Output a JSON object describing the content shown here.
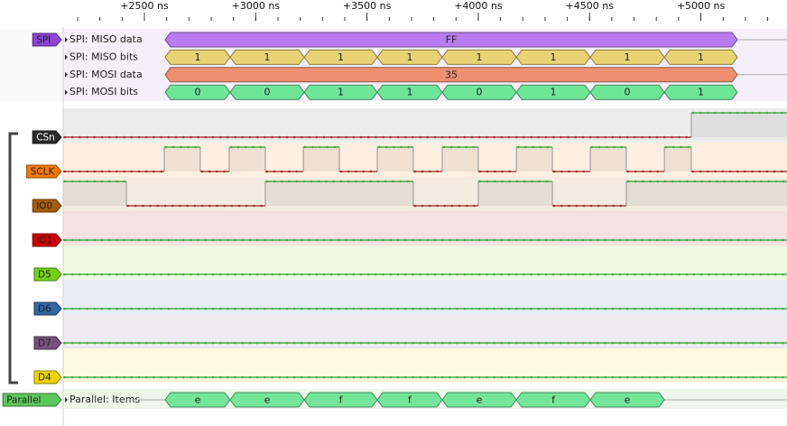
{
  "time_axis": {
    "lim": [
      2135,
      5387
    ],
    "ticks": [
      {
        "value": 2500,
        "label": "+2500 ns"
      },
      {
        "value": 3000,
        "label": "+3000 ns"
      },
      {
        "value": 3500,
        "label": "+3500 ns"
      },
      {
        "value": 4000,
        "label": "+4000 ns"
      },
      {
        "value": 4500,
        "label": "+4500 ns"
      },
      {
        "value": 5000,
        "label": "+5000 ns"
      }
    ]
  },
  "decoders": [
    {
      "name": "SPI",
      "color": "#8e44d6",
      "rows": [
        {
          "label": "SPI: MISO data",
          "color": "#b97cf0",
          "bounds": [
            2593,
            5164
          ],
          "texts": [
            "FF"
          ]
        },
        {
          "label": "SPI: MISO bits",
          "color": "#e8d274",
          "bounds": [
            2593,
            2885,
            3218,
            3546,
            3838,
            4171,
            4503,
            4836,
            5164
          ],
          "texts": [
            "1",
            "1",
            "1",
            "1",
            "1",
            "1",
            "1",
            "1"
          ]
        },
        {
          "label": "SPI: MOSI data",
          "color": "#ee8f6f",
          "bounds": [
            2593,
            5164
          ],
          "texts": [
            "35"
          ]
        },
        {
          "label": "SPI: MOSI bits",
          "color": "#6fe598",
          "bounds": [
            2593,
            2885,
            3218,
            3546,
            3838,
            4171,
            4503,
            4836,
            5164
          ],
          "texts": [
            "0",
            "0",
            "1",
            "1",
            "0",
            "1",
            "0",
            "1"
          ]
        }
      ]
    },
    {
      "name": "Parallel",
      "color": "#5cc85c",
      "rows": [
        {
          "label": "Parallel: Items",
          "color": "#74e59a",
          "bounds": [
            2593,
            2885,
            3218,
            3546,
            3838,
            4171,
            4503,
            4836
          ],
          "texts": [
            "e",
            "e",
            "f",
            "f",
            "e",
            "f",
            "e"
          ]
        }
      ]
    }
  ],
  "channels": [
    {
      "name": "CSn",
      "color": "#2b2b2b",
      "initial": 0,
      "edges": [
        4957
      ]
    },
    {
      "name": "SCLK",
      "color": "#f57900",
      "initial": 0,
      "edges": [
        2589,
        2751,
        2881,
        3043,
        3214,
        3376,
        3546,
        3708,
        3838,
        4000,
        4171,
        4333,
        4503,
        4665,
        4836,
        4957
      ]
    },
    {
      "name": "IO0",
      "color": "#a55c08",
      "initial": 1,
      "edges": [
        2419,
        3043,
        3708,
        4000,
        4333,
        4665
      ]
    },
    {
      "name": "IO1",
      "color": "#cc0000",
      "initial": 0,
      "edges": []
    },
    {
      "name": "D5",
      "color": "#73d216",
      "initial": 0,
      "edges": []
    },
    {
      "name": "D6",
      "color": "#3465a4",
      "initial": 0,
      "edges": []
    },
    {
      "name": "D7",
      "color": "#75507b",
      "initial": 0,
      "edges": []
    },
    {
      "name": "D4",
      "color": "#edd400",
      "initial": 0,
      "edges": []
    }
  ]
}
